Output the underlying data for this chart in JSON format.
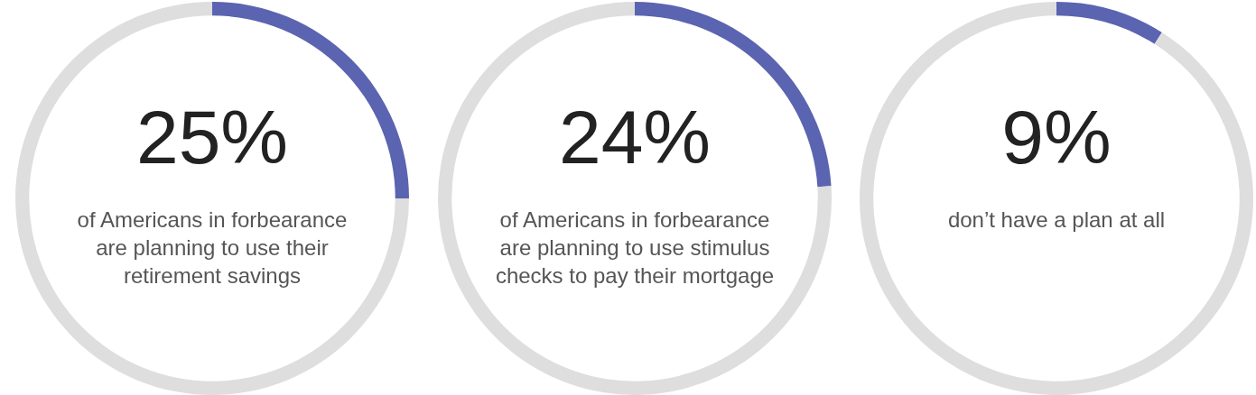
{
  "chart_data": [
    {
      "type": "donut",
      "categories": [
        null,
        null
      ],
      "values": [
        25,
        75
      ],
      "colors": [
        "#5a64b0",
        "#dedede"
      ],
      "value_labels": [
        "25%",
        null
      ],
      "annotations": [
        "of Americans in forbearance are planning to use their retirement savings"
      ]
    },
    {
      "type": "donut",
      "categories": [
        null,
        null
      ],
      "values": [
        24,
        76
      ],
      "colors": [
        "#5a64b0",
        "#dedede"
      ],
      "value_labels": [
        "24%",
        null
      ],
      "annotations": [
        "of Americans in forbearance are planning to use stimulus checks to pay their mortgage"
      ]
    },
    {
      "type": "donut",
      "categories": [
        null,
        null
      ],
      "values": [
        9,
        91
      ],
      "colors": [
        "#5a64b0",
        "#dedede"
      ],
      "value_labels": [
        "9%",
        null
      ],
      "annotations": [
        "don’t have a plan at all"
      ]
    }
  ]
}
